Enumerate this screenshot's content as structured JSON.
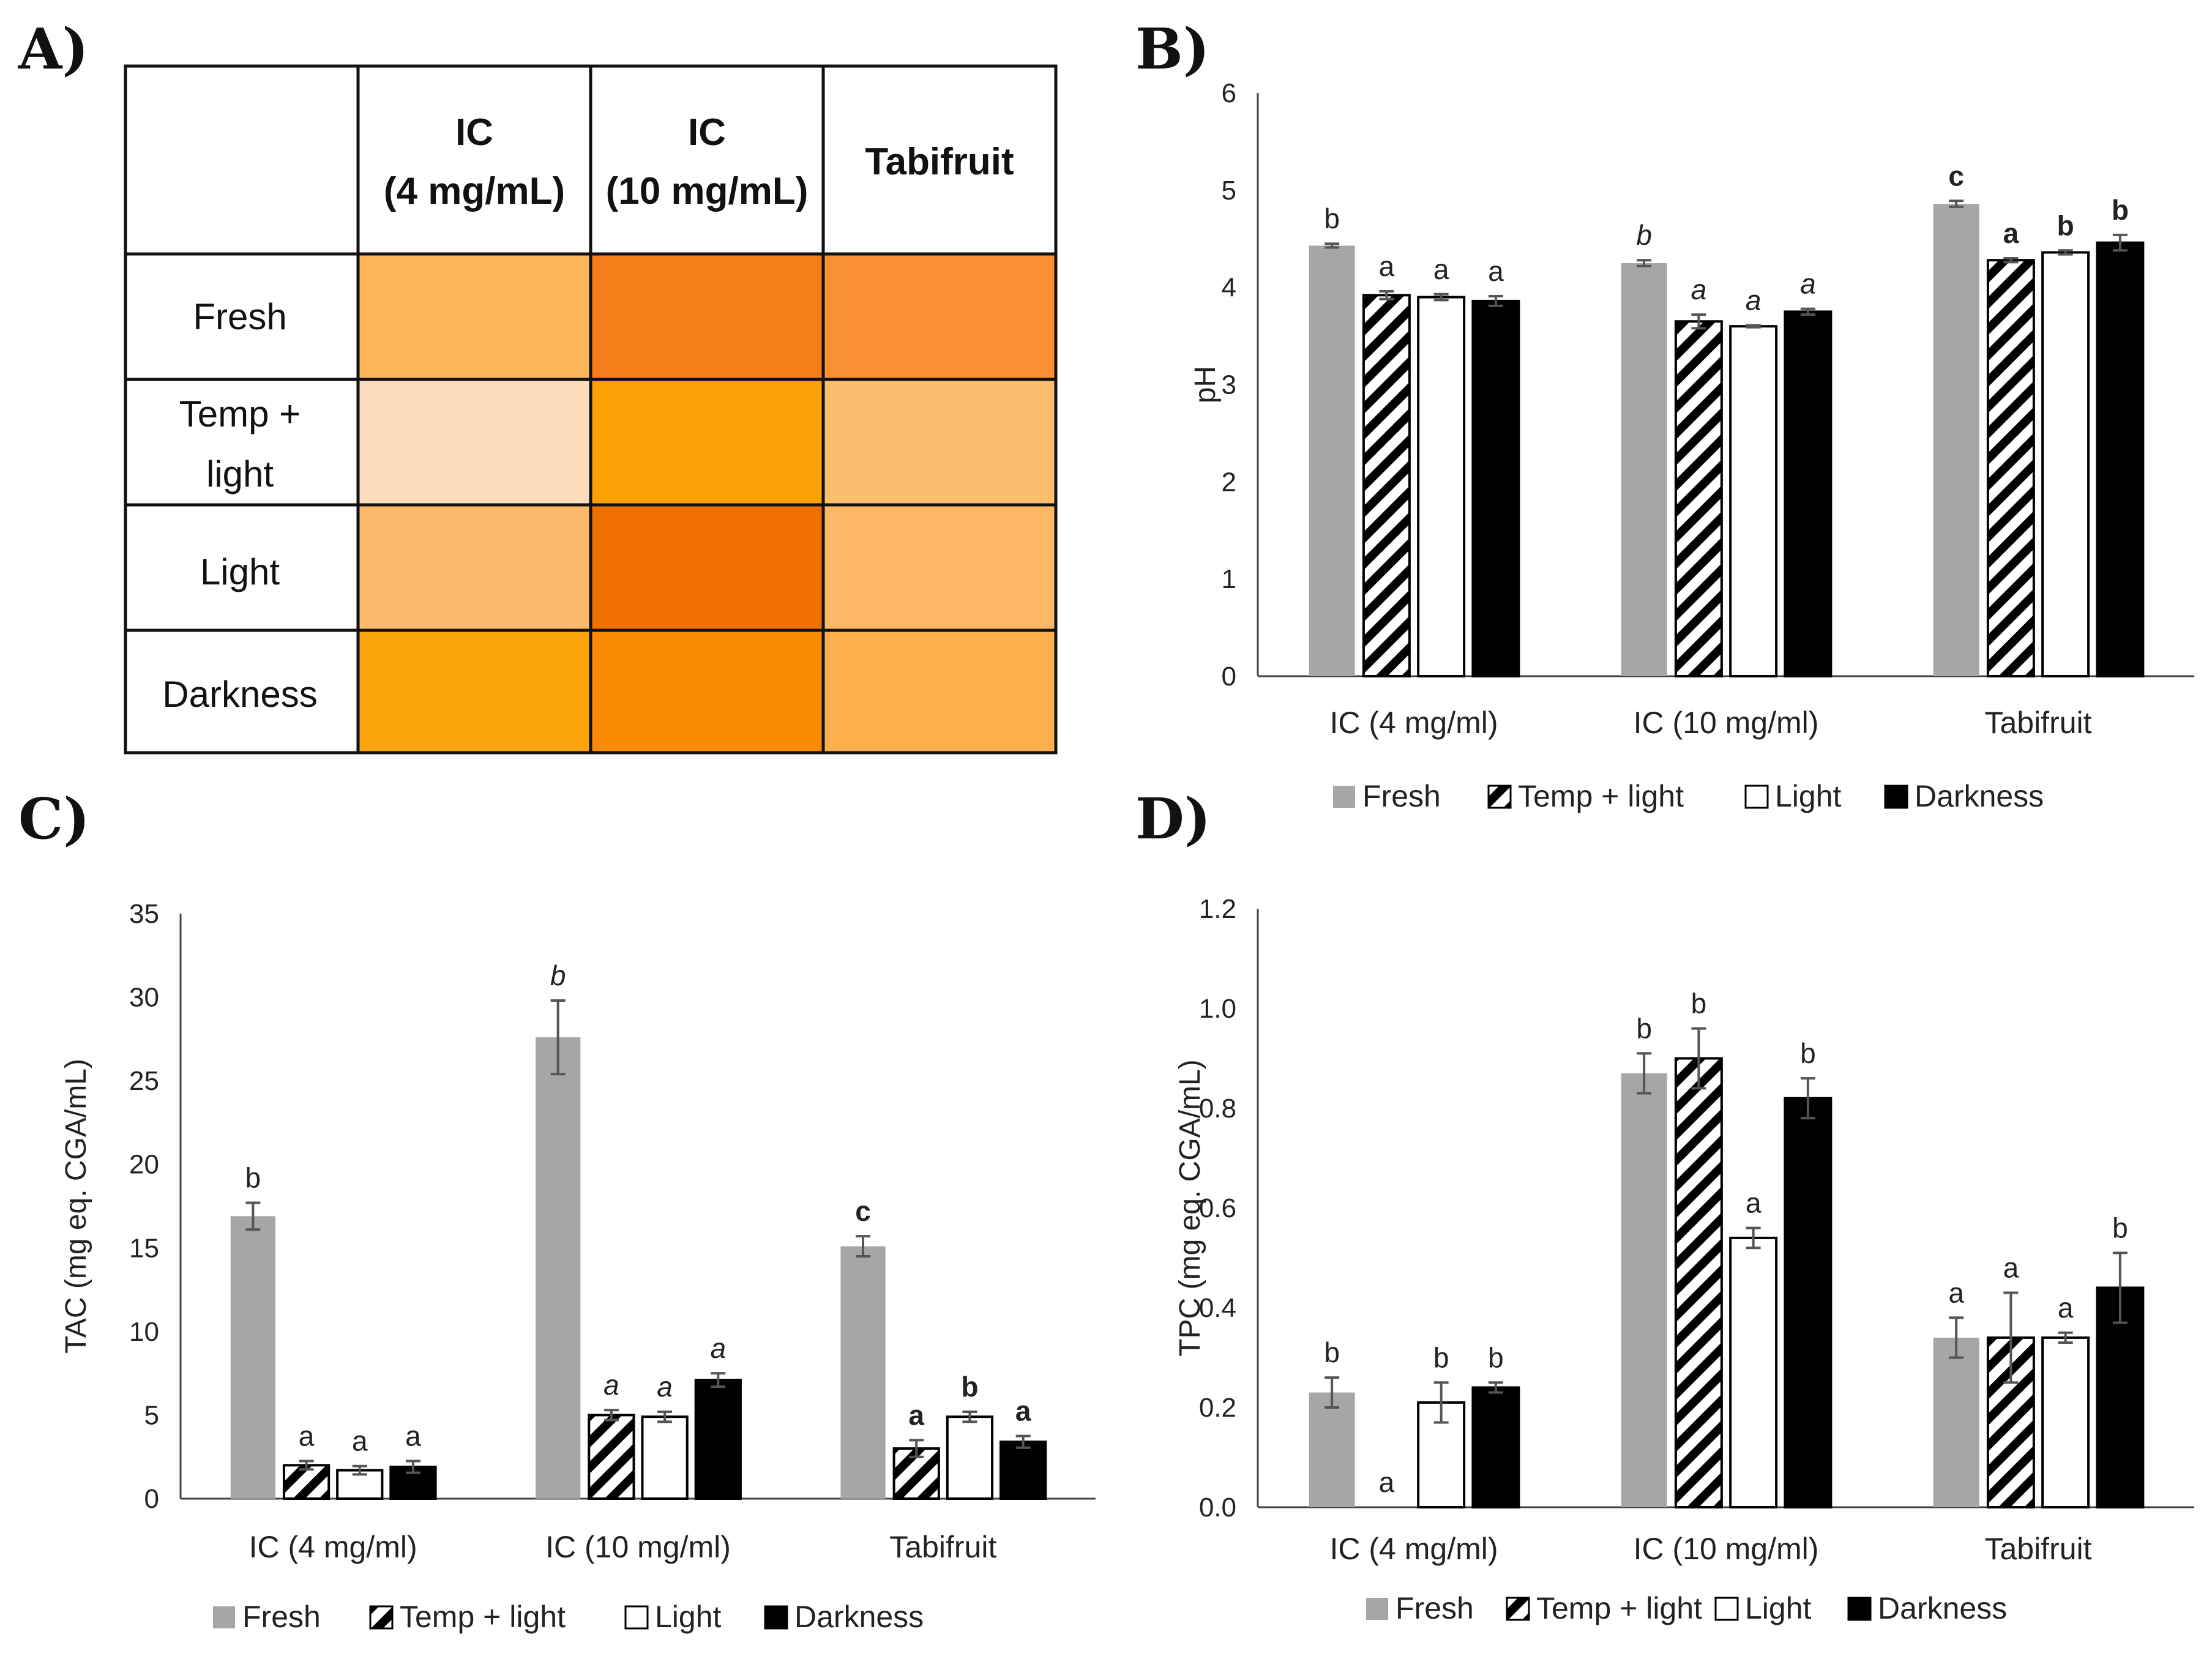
{
  "figure": {
    "panel_labels": {
      "A": "A)",
      "B": "B)",
      "C": "C)",
      "D": "D)"
    }
  },
  "series_colors": {
    "Fresh": "#a6a6a6",
    "Temp + light": "hatch",
    "Light": "#ffffff",
    "Darkness": "#000000"
  },
  "table_A": {
    "columns": [
      {
        "line1": "IC",
        "line2": "(4 mg/mL)"
      },
      {
        "line1": "IC",
        "line2": "(10 mg/mL)"
      },
      {
        "line1": "Tabifruit",
        "line2": ""
      }
    ],
    "rows": [
      {
        "line1": "Fresh",
        "line2": "",
        "colors": [
          "#fdb55a",
          "#f57d1a",
          "#fa9033"
        ]
      },
      {
        "line1": "Temp +",
        "line2": "light",
        "colors": [
          "#fddcbb",
          "#fba005",
          "#fdbd6e"
        ]
      },
      {
        "line1": "Light",
        "line2": "",
        "colors": [
          "#fdb96a",
          "#f06f01",
          "#fdb865"
        ]
      },
      {
        "line1": "Darkness",
        "line2": "",
        "colors": [
          "#fca50a",
          "#f98b04",
          "#fcb14e"
        ]
      }
    ]
  },
  "chart_data": [
    {
      "id": "B",
      "type": "bar",
      "title": "",
      "xlabel": "",
      "ylabel": "pH",
      "ylim": [
        0,
        6
      ],
      "yticks": [
        "0",
        "1",
        "2",
        "3",
        "4",
        "5",
        "6"
      ],
      "categories": [
        "IC (4 mg/ml)",
        "IC (10 mg/ml)",
        "Tabifruit"
      ],
      "series": [
        {
          "name": "Fresh",
          "values": [
            4.43,
            4.25,
            4.86
          ],
          "errors": [
            0.02,
            0.03,
            0.03
          ],
          "letters": [
            "b",
            "b",
            "c"
          ]
        },
        {
          "name": "Temp + light",
          "values": [
            3.92,
            3.65,
            4.28
          ],
          "errors": [
            0.04,
            0.07,
            0.02
          ],
          "letters": [
            "a",
            "a",
            "a"
          ]
        },
        {
          "name": "Light",
          "values": [
            3.9,
            3.6,
            4.36
          ],
          "errors": [
            0.03,
            0.01,
            0.02
          ],
          "letters": [
            "a",
            "a",
            "b"
          ]
        },
        {
          "name": "Darkness",
          "values": [
            3.86,
            3.75,
            4.46
          ],
          "errors": [
            0.05,
            0.03,
            0.08
          ],
          "letters": [
            "a",
            "a",
            "b"
          ]
        }
      ],
      "letter_style": [
        "normal",
        "italic",
        "bold"
      ],
      "legend": {
        "position": "bottom",
        "labels": [
          "Fresh",
          "Temp + light",
          "Light",
          "Darkness"
        ]
      }
    },
    {
      "id": "C",
      "type": "bar",
      "title": "",
      "xlabel": "",
      "ylabel": "TAC (mg eq. CGA/mL)",
      "ylim": [
        0,
        35
      ],
      "yticks": [
        "0",
        "5",
        "10",
        "15",
        "20",
        "25",
        "30",
        "35"
      ],
      "categories": [
        "IC (4 mg/ml)",
        "IC (10 mg/ml)",
        "Tabifruit"
      ],
      "series": [
        {
          "name": "Fresh",
          "values": [
            16.9,
            27.6,
            15.1
          ],
          "errors": [
            0.8,
            2.2,
            0.6
          ],
          "letters": [
            "b",
            "b",
            "c"
          ]
        },
        {
          "name": "Temp + light",
          "values": [
            2.0,
            5.0,
            3.0
          ],
          "errors": [
            0.25,
            0.3,
            0.5
          ],
          "letters": [
            "a",
            "a",
            "a"
          ]
        },
        {
          "name": "Light",
          "values": [
            1.7,
            4.9,
            4.9
          ],
          "errors": [
            0.25,
            0.3,
            0.3
          ],
          "letters": [
            "a",
            "a",
            "b"
          ]
        },
        {
          "name": "Darkness",
          "values": [
            1.9,
            7.1,
            3.4
          ],
          "errors": [
            0.35,
            0.4,
            0.35
          ],
          "letters": [
            "a",
            "a",
            "a"
          ]
        }
      ],
      "letter_style": [
        "normal",
        "italic",
        "bold"
      ],
      "legend": {
        "position": "bottom",
        "labels": [
          "Fresh",
          "Temp + light",
          "Light",
          "Darkness"
        ]
      }
    },
    {
      "id": "D",
      "type": "bar",
      "title": "",
      "xlabel": "",
      "ylabel": "TPC (mg eq. CGA/mL)",
      "ylim": [
        0,
        1.2
      ],
      "yticks": [
        "0.0",
        "0.2",
        "0.4",
        "0.6",
        "0.8",
        "1.0",
        "1.2"
      ],
      "categories": [
        "IC (4 mg/ml)",
        "IC (10 mg/ml)",
        "Tabifruit"
      ],
      "series": [
        {
          "name": "Fresh",
          "values": [
            0.23,
            0.87,
            0.34
          ],
          "errors": [
            0.03,
            0.04,
            0.04
          ],
          "letters": [
            "b",
            "b",
            "a"
          ]
        },
        {
          "name": "Temp + light",
          "values": [
            0.0,
            0.9,
            0.34
          ],
          "errors": [
            0.0,
            0.06,
            0.09
          ],
          "letters": [
            "a",
            "b",
            "a"
          ]
        },
        {
          "name": "Light",
          "values": [
            0.21,
            0.54,
            0.34
          ],
          "errors": [
            0.04,
            0.02,
            0.01
          ],
          "letters": [
            "b",
            "a",
            "a"
          ]
        },
        {
          "name": "Darkness",
          "values": [
            0.24,
            0.82,
            0.44
          ],
          "errors": [
            0.01,
            0.04,
            0.07
          ],
          "letters": [
            "b",
            "b",
            "b"
          ]
        }
      ],
      "letter_style": [
        "normal",
        "normal",
        "normal"
      ],
      "legend": {
        "position": "bottom",
        "labels": [
          "Fresh",
          "Temp + light",
          "Light",
          "Darkness"
        ]
      }
    }
  ]
}
